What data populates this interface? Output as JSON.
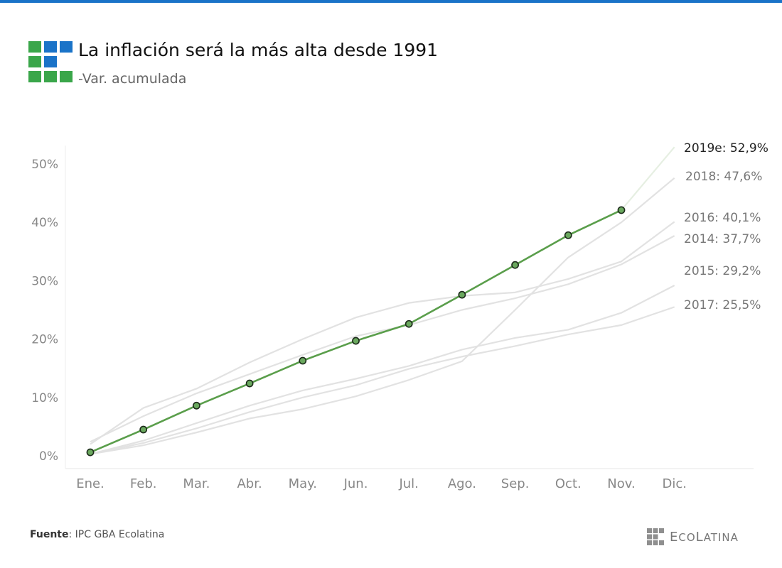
{
  "header": {
    "title": "La inflación será la más alta desde 1991",
    "subtitle": "-Var. acumulada"
  },
  "footer": {
    "source_label": "Fuente",
    "source_text": ": IPC GBA Ecolatina",
    "brand_initial_e": "E",
    "brand_part_co": "CO",
    "brand_initial_l": "L",
    "brand_part_atina": "ATINA"
  },
  "colors": {
    "accent_blue": "#1a73c8",
    "logo_green": "#3aa64a",
    "highlight_line": "#5a9e4b",
    "marker_fill": "#6aa85e",
    "background_lines": "#e2e2e2",
    "axis_text": "#888888"
  },
  "chart_data": {
    "type": "line",
    "title": "La inflación será la más alta desde 1991",
    "subtitle": "-Var. acumulada",
    "xlabel": "",
    "ylabel": "",
    "ylim": [
      -2,
      56
    ],
    "y_ticks": [
      0,
      10,
      20,
      30,
      40,
      50
    ],
    "y_tick_labels": [
      "0%",
      "10%",
      "20%",
      "30%",
      "40%",
      "50%"
    ],
    "categories": [
      "Ene.",
      "Feb.",
      "Mar.",
      "Abr.",
      "May.",
      "Jun.",
      "Jul.",
      "Ago.",
      "Sep.",
      "Oct.",
      "Nov.",
      "Dic."
    ],
    "grid": false,
    "legend": "end-of-line labels at right",
    "highlight": {
      "name": "2019e",
      "label": "2019e: 52,9%",
      "values": [
        0.6,
        4.5,
        8.6,
        12.4,
        16.3,
        19.7,
        22.6,
        27.6,
        32.7,
        37.8,
        42.1,
        52.9
      ],
      "marker_count": 11,
      "estimated_from_index": 10
    },
    "series": [
      {
        "name": "2018",
        "label": "2018: 47,6%",
        "values": [
          0.3,
          1.8,
          4.0,
          6.4,
          8.0,
          10.2,
          13.0,
          16.2,
          25.0,
          34.0,
          40.0,
          47.6
        ]
      },
      {
        "name": "2016",
        "label": "2016: 40,1%",
        "values": [
          2.0,
          8.2,
          11.5,
          16.0,
          20.0,
          23.7,
          26.2,
          27.4,
          28.0,
          30.3,
          33.3,
          40.1
        ]
      },
      {
        "name": "2014",
        "label": "2014: 37,7%",
        "values": [
          2.4,
          6.8,
          10.7,
          14.0,
          17.3,
          20.5,
          22.4,
          25.0,
          27.0,
          29.4,
          32.8,
          37.7
        ]
      },
      {
        "name": "2015",
        "label": "2015: 29,2%",
        "values": [
          0.3,
          2.6,
          5.6,
          8.6,
          11.2,
          13.2,
          15.4,
          18.2,
          20.2,
          21.6,
          24.5,
          29.2
        ]
      },
      {
        "name": "2017",
        "label": "2017: 25,5%",
        "values": [
          0.3,
          2.2,
          4.7,
          7.5,
          10.0,
          12.1,
          14.9,
          17.0,
          18.8,
          20.8,
          22.4,
          25.5
        ]
      }
    ]
  }
}
